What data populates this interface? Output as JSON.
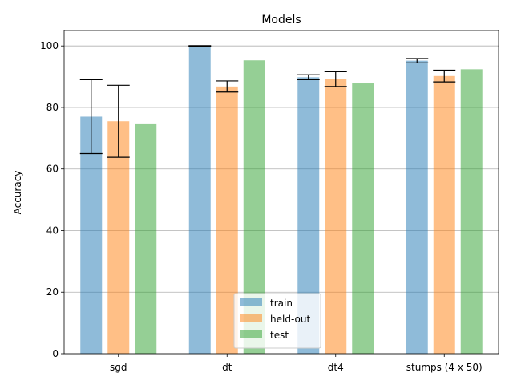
{
  "chart_data": {
    "type": "bar",
    "title": "Models",
    "xlabel": "",
    "ylabel": "Accuracy",
    "categories": [
      "sgd",
      "dt",
      "dt4",
      "stumps (4 x 50)"
    ],
    "ylim": [
      0,
      105
    ],
    "yticks": [
      0,
      20,
      40,
      60,
      80,
      100
    ],
    "grid": "y-major",
    "legend_position": "lower center",
    "bar_alpha": 0.5,
    "series": [
      {
        "name": "train",
        "color": "#1f77b4",
        "values": [
          77.0,
          100.0,
          89.8,
          95.2
        ],
        "error_low": [
          65.0,
          99.9,
          89.0,
          94.5
        ],
        "error_high": [
          89.0,
          100.1,
          90.6,
          95.9
        ]
      },
      {
        "name": "held-out",
        "color": "#ff7f0e",
        "values": [
          75.5,
          86.8,
          89.2,
          90.2
        ],
        "error_low": [
          63.8,
          85.0,
          86.8,
          88.3
        ],
        "error_high": [
          87.2,
          88.6,
          91.6,
          92.1
        ]
      },
      {
        "name": "test",
        "color": "#2ca02c",
        "values": [
          74.8,
          95.3,
          87.8,
          92.4
        ]
      }
    ]
  }
}
